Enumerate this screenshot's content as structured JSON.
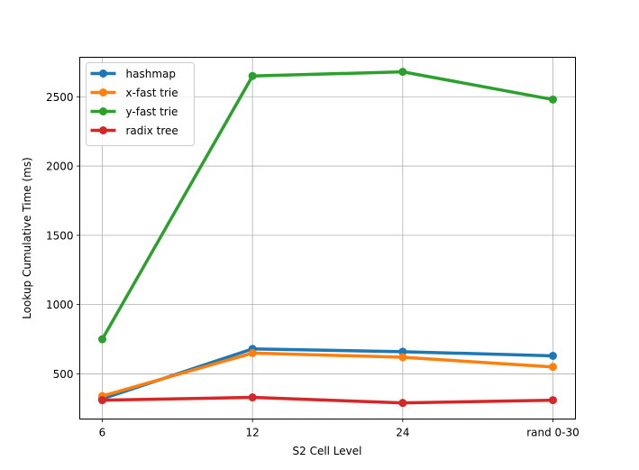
{
  "chart_data": {
    "type": "line",
    "categories": [
      "6",
      "12",
      "24",
      "rand 0-30"
    ],
    "series": [
      {
        "name": "hashmap",
        "color": "#1f77b4",
        "values": [
          320,
          680,
          660,
          630
        ]
      },
      {
        "name": "x-fast trie",
        "color": "#ff7f0e",
        "values": [
          340,
          650,
          620,
          550
        ]
      },
      {
        "name": "y-fast trie",
        "color": "#2ca02c",
        "values": [
          750,
          2650,
          2680,
          2480
        ]
      },
      {
        "name": "radix tree",
        "color": "#d62728",
        "values": [
          310,
          330,
          290,
          310
        ]
      }
    ],
    "xlabel": "S2 Cell Level",
    "ylabel": "Lookup Cumulative Time (ms)",
    "ylim": [
      174,
      2785
    ],
    "yticks": [
      500,
      1000,
      1500,
      2000,
      2500
    ],
    "grid": true,
    "legend": "upper-left"
  }
}
